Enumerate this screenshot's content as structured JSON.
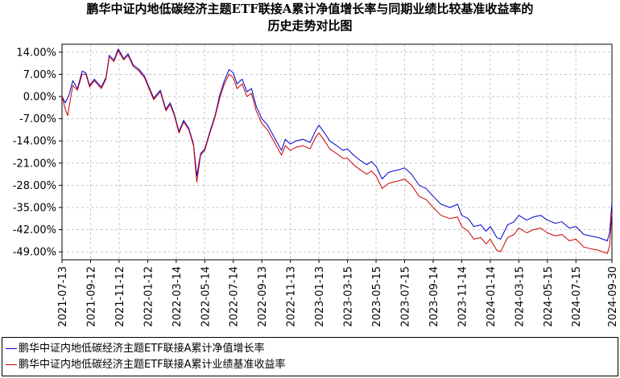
{
  "chart_data": {
    "type": "line",
    "title_line1": "鹏华中证内地低碳经济主题ETF联接A累计净值增长率与同期业绩比较基准收益率的",
    "title_line2": "历史走势对比图",
    "yticks": [
      "14.00%",
      "7.00%",
      "0.00%",
      "-7.00%",
      "-14.00%",
      "-21.00%",
      "-28.00%",
      "-35.00%",
      "-42.00%",
      "-49.00%"
    ],
    "ytick_values": [
      14,
      7,
      0,
      -7,
      -14,
      -21,
      -28,
      -35,
      -42,
      -49
    ],
    "ylim": [
      -51.5,
      16.5
    ],
    "xticks": [
      "2021-07-13",
      "2021-09-12",
      "2021-11-12",
      "2022-01-12",
      "2022-03-14",
      "2022-05-14",
      "2022-07-14",
      "2022-09-13",
      "2022-11-13",
      "2023-01-13",
      "2023-03-15",
      "2023-05-15",
      "2023-07-15",
      "2023-09-14",
      "2023-11-14",
      "2024-01-14",
      "2024-03-15",
      "2024-05-15",
      "2024-07-15",
      "2024-09-30"
    ],
    "xlim": [
      "2021-07-13",
      "2024-09-30"
    ],
    "grid": true,
    "series": [
      {
        "name": "鹏华中证内地低碳经济主题ETF联接A累计净值增长率",
        "color": "#0000cc",
        "points": [
          [
            "2021-07-13",
            0.0
          ],
          [
            "2021-07-20",
            -2.0
          ],
          [
            "2021-07-28",
            0.5
          ],
          [
            "2021-08-05",
            5.0
          ],
          [
            "2021-08-15",
            2.5
          ],
          [
            "2021-08-25",
            8.0
          ],
          [
            "2021-09-02",
            7.5
          ],
          [
            "2021-09-10",
            3.5
          ],
          [
            "2021-09-20",
            5.5
          ],
          [
            "2021-10-05",
            3.0
          ],
          [
            "2021-10-15",
            6.0
          ],
          [
            "2021-10-22",
            13.0
          ],
          [
            "2021-11-01",
            11.5
          ],
          [
            "2021-11-10",
            15.0
          ],
          [
            "2021-11-22",
            12.0
          ],
          [
            "2021-12-01",
            13.5
          ],
          [
            "2021-12-12",
            10.0
          ],
          [
            "2021-12-25",
            8.5
          ],
          [
            "2022-01-05",
            6.5
          ],
          [
            "2022-01-15",
            3.0
          ],
          [
            "2022-01-25",
            -0.5
          ],
          [
            "2022-02-08",
            2.0
          ],
          [
            "2022-02-20",
            -4.0
          ],
          [
            "2022-03-01",
            -2.0
          ],
          [
            "2022-03-10",
            -5.5
          ],
          [
            "2022-03-20",
            -11.0
          ],
          [
            "2022-03-30",
            -7.5
          ],
          [
            "2022-04-10",
            -10.0
          ],
          [
            "2022-04-20",
            -15.0
          ],
          [
            "2022-04-27",
            -25.0
          ],
          [
            "2022-05-05",
            -18.0
          ],
          [
            "2022-05-14",
            -16.5
          ],
          [
            "2022-05-25",
            -11.0
          ],
          [
            "2022-06-05",
            -6.0
          ],
          [
            "2022-06-15",
            0.5
          ],
          [
            "2022-06-25",
            5.0
          ],
          [
            "2022-07-05",
            8.5
          ],
          [
            "2022-07-14",
            7.5
          ],
          [
            "2022-07-22",
            4.0
          ],
          [
            "2022-08-02",
            5.5
          ],
          [
            "2022-08-12",
            1.5
          ],
          [
            "2022-08-22",
            2.5
          ],
          [
            "2022-09-01",
            -3.0
          ],
          [
            "2022-09-13",
            -7.0
          ],
          [
            "2022-09-25",
            -9.0
          ],
          [
            "2022-10-10",
            -13.0
          ],
          [
            "2022-10-25",
            -17.0
          ],
          [
            "2022-11-02",
            -13.5
          ],
          [
            "2022-11-13",
            -15.0
          ],
          [
            "2022-11-25",
            -14.0
          ],
          [
            "2022-12-10",
            -13.5
          ],
          [
            "2022-12-25",
            -14.5
          ],
          [
            "2023-01-05",
            -11.0
          ],
          [
            "2023-01-13",
            -9.0
          ],
          [
            "2023-01-25",
            -11.5
          ],
          [
            "2023-02-05",
            -14.0
          ],
          [
            "2023-02-20",
            -15.5
          ],
          [
            "2023-03-05",
            -17.0
          ],
          [
            "2023-03-15",
            -16.5
          ],
          [
            "2023-03-28",
            -18.5
          ],
          [
            "2023-04-10",
            -20.0
          ],
          [
            "2023-04-25",
            -21.5
          ],
          [
            "2023-05-05",
            -20.5
          ],
          [
            "2023-05-15",
            -22.0
          ],
          [
            "2023-05-28",
            -26.0
          ],
          [
            "2023-06-10",
            -24.0
          ],
          [
            "2023-06-20",
            -23.5
          ],
          [
            "2023-07-05",
            -23.0
          ],
          [
            "2023-07-15",
            -22.5
          ],
          [
            "2023-07-30",
            -24.5
          ],
          [
            "2023-08-15",
            -28.0
          ],
          [
            "2023-08-30",
            -29.0
          ],
          [
            "2023-09-14",
            -31.5
          ],
          [
            "2023-10-01",
            -34.0
          ],
          [
            "2023-10-20",
            -35.0
          ],
          [
            "2023-11-05",
            -34.0
          ],
          [
            "2023-11-14",
            -37.5
          ],
          [
            "2023-11-28",
            -38.5
          ],
          [
            "2023-12-10",
            -41.0
          ],
          [
            "2023-12-25",
            -40.5
          ],
          [
            "2024-01-05",
            -42.5
          ],
          [
            "2024-01-14",
            -41.0
          ],
          [
            "2024-01-28",
            -44.5
          ],
          [
            "2024-02-05",
            -45.0
          ],
          [
            "2024-02-20",
            -40.5
          ],
          [
            "2024-03-05",
            -39.5
          ],
          [
            "2024-03-15",
            -37.5
          ],
          [
            "2024-04-01",
            -39.0
          ],
          [
            "2024-04-15",
            -38.0
          ],
          [
            "2024-05-01",
            -37.5
          ],
          [
            "2024-05-15",
            -39.0
          ],
          [
            "2024-06-01",
            -40.0
          ],
          [
            "2024-06-15",
            -39.5
          ],
          [
            "2024-07-01",
            -41.5
          ],
          [
            "2024-07-15",
            -41.0
          ],
          [
            "2024-08-01",
            -43.5
          ],
          [
            "2024-08-15",
            -44.0
          ],
          [
            "2024-09-01",
            -44.5
          ],
          [
            "2024-09-20",
            -45.5
          ],
          [
            "2024-09-25",
            -43.0
          ],
          [
            "2024-09-30",
            -33.5
          ]
        ]
      },
      {
        "name": "鹏华中证内地低碳经济主题ETF联接A累计业绩基准收益率",
        "color": "#cc0000",
        "points": [
          [
            "2021-07-13",
            0.0
          ],
          [
            "2021-07-20",
            -4.0
          ],
          [
            "2021-07-25",
            -6.0
          ],
          [
            "2021-08-05",
            3.5
          ],
          [
            "2021-08-15",
            2.0
          ],
          [
            "2021-08-25",
            7.0
          ],
          [
            "2021-09-02",
            7.0
          ],
          [
            "2021-09-10",
            3.0
          ],
          [
            "2021-09-20",
            5.0
          ],
          [
            "2021-10-05",
            2.5
          ],
          [
            "2021-10-15",
            5.5
          ],
          [
            "2021-10-22",
            12.5
          ],
          [
            "2021-11-01",
            11.0
          ],
          [
            "2021-11-10",
            14.5
          ],
          [
            "2021-11-22",
            11.5
          ],
          [
            "2021-12-01",
            13.0
          ],
          [
            "2021-12-12",
            9.5
          ],
          [
            "2021-12-25",
            8.0
          ],
          [
            "2022-01-05",
            6.0
          ],
          [
            "2022-01-15",
            2.5
          ],
          [
            "2022-01-25",
            -1.0
          ],
          [
            "2022-02-08",
            1.5
          ],
          [
            "2022-02-20",
            -4.5
          ],
          [
            "2022-03-01",
            -2.5
          ],
          [
            "2022-03-10",
            -6.0
          ],
          [
            "2022-03-20",
            -11.5
          ],
          [
            "2022-03-30",
            -8.0
          ],
          [
            "2022-04-10",
            -10.5
          ],
          [
            "2022-04-20",
            -15.5
          ],
          [
            "2022-04-27",
            -27.0
          ],
          [
            "2022-05-05",
            -18.5
          ],
          [
            "2022-05-14",
            -17.0
          ],
          [
            "2022-05-25",
            -11.5
          ],
          [
            "2022-06-05",
            -6.5
          ],
          [
            "2022-06-15",
            -0.5
          ],
          [
            "2022-06-25",
            4.0
          ],
          [
            "2022-07-05",
            7.0
          ],
          [
            "2022-07-14",
            6.0
          ],
          [
            "2022-07-22",
            2.5
          ],
          [
            "2022-08-02",
            4.0
          ],
          [
            "2022-08-12",
            0.0
          ],
          [
            "2022-08-22",
            1.0
          ],
          [
            "2022-09-01",
            -4.5
          ],
          [
            "2022-09-13",
            -8.5
          ],
          [
            "2022-09-25",
            -10.5
          ],
          [
            "2022-10-10",
            -14.5
          ],
          [
            "2022-10-25",
            -18.5
          ],
          [
            "2022-11-02",
            -15.5
          ],
          [
            "2022-11-13",
            -17.0
          ],
          [
            "2022-11-25",
            -16.0
          ],
          [
            "2022-12-10",
            -15.5
          ],
          [
            "2022-12-25",
            -16.5
          ],
          [
            "2023-01-05",
            -13.0
          ],
          [
            "2023-01-13",
            -11.5
          ],
          [
            "2023-01-25",
            -14.0
          ],
          [
            "2023-02-05",
            -16.5
          ],
          [
            "2023-02-20",
            -18.0
          ],
          [
            "2023-03-05",
            -19.5
          ],
          [
            "2023-03-15",
            -19.5
          ],
          [
            "2023-03-28",
            -21.5
          ],
          [
            "2023-04-10",
            -23.0
          ],
          [
            "2023-04-25",
            -24.5
          ],
          [
            "2023-05-05",
            -23.5
          ],
          [
            "2023-05-15",
            -25.0
          ],
          [
            "2023-05-28",
            -29.0
          ],
          [
            "2023-06-10",
            -27.5
          ],
          [
            "2023-06-20",
            -27.0
          ],
          [
            "2023-07-05",
            -26.5
          ],
          [
            "2023-07-15",
            -26.0
          ],
          [
            "2023-07-30",
            -28.0
          ],
          [
            "2023-08-15",
            -31.5
          ],
          [
            "2023-08-30",
            -32.5
          ],
          [
            "2023-09-14",
            -35.0
          ],
          [
            "2023-10-01",
            -37.5
          ],
          [
            "2023-10-20",
            -38.5
          ],
          [
            "2023-11-05",
            -38.0
          ],
          [
            "2023-11-14",
            -41.0
          ],
          [
            "2023-11-28",
            -42.5
          ],
          [
            "2023-12-10",
            -45.0
          ],
          [
            "2023-12-25",
            -44.5
          ],
          [
            "2024-01-05",
            -46.5
          ],
          [
            "2024-01-14",
            -45.0
          ],
          [
            "2024-01-28",
            -48.5
          ],
          [
            "2024-02-05",
            -49.0
          ],
          [
            "2024-02-20",
            -44.5
          ],
          [
            "2024-03-05",
            -43.5
          ],
          [
            "2024-03-15",
            -41.5
          ],
          [
            "2024-04-01",
            -43.0
          ],
          [
            "2024-04-15",
            -42.0
          ],
          [
            "2024-05-01",
            -41.5
          ],
          [
            "2024-05-15",
            -43.0
          ],
          [
            "2024-06-01",
            -44.0
          ],
          [
            "2024-06-15",
            -43.5
          ],
          [
            "2024-07-01",
            -45.5
          ],
          [
            "2024-07-15",
            -45.0
          ],
          [
            "2024-08-01",
            -47.5
          ],
          [
            "2024-08-15",
            -48.0
          ],
          [
            "2024-09-01",
            -48.5
          ],
          [
            "2024-09-20",
            -49.5
          ],
          [
            "2024-09-25",
            -47.0
          ],
          [
            "2024-09-30",
            -36.5
          ]
        ]
      }
    ]
  }
}
